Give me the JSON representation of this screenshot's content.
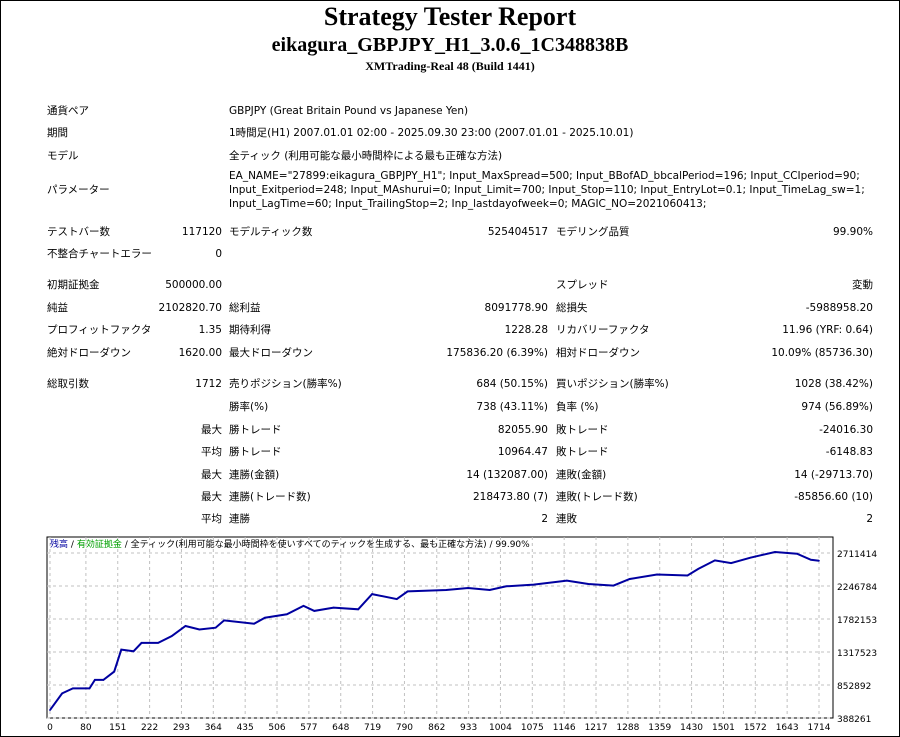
{
  "header": {
    "title": "Strategy Tester Report",
    "expert": "eikagura_GBPJPY_H1_3.0.6_1C348838B",
    "server": "XMTrading-Real 48 (Build 1441)"
  },
  "info": [
    {
      "label": "通貨ペア",
      "value": "GBPJPY (Great Britain Pound vs Japanese Yen)"
    },
    {
      "label": "期間",
      "value": "1時間足(H1) 2007.01.01 02:00 - 2025.09.30 23:00 (2007.01.01 - 2025.10.01)"
    },
    {
      "label": "モデル",
      "value": "全ティック (利用可能な最小時間枠による最も正確な方法)"
    }
  ],
  "parameters": {
    "label": "パラメーター",
    "lines": [
      "EA_NAME=\"27899:eikagura_GBPJPY_H1\"; Input_MaxSpread=500; Input_BBofAD_bbcalPeriod=196; Input_CCIperiod=90;",
      "Input_Exitperiod=248; Input_MAshurui=0; Input_Limit=700; Input_Stop=110; Input_EntryLot=0.1; Input_TimeLag_sw=1;",
      "Input_LagTime=60; Input_TrailingStop=2; Inp_lastdayofweek=0; MAGIC_NO=2021060413;"
    ]
  },
  "stats": [
    [
      "テストバー数",
      "117120",
      "モデルティック数",
      "525404517",
      "モデリング品質",
      "99.90%"
    ],
    [
      "不整合チャートエラー",
      "0",
      "",
      "",
      "",
      ""
    ],
    [
      "初期証拠金",
      "500000.00",
      "",
      "",
      "スプレッド",
      "変動"
    ],
    [
      "純益",
      "2102820.70",
      "総利益",
      "8091778.90",
      "総損失",
      "-5988958.20"
    ],
    [
      "プロフィットファクタ",
      "1.35",
      "期待利得",
      "1228.28",
      "リカバリーファクタ",
      "11.96 (YRF: 0.64)"
    ],
    [
      "絶対ドローダウン",
      "1620.00",
      "最大ドローダウン",
      "175836.20 (6.39%)",
      "相対ドローダウン",
      "10.09% (85736.30)"
    ],
    [
      "総取引数",
      "1712",
      "売りポジション(勝率%)",
      "684 (50.15%)",
      "買いポジション(勝率%)",
      "1028 (38.42%)"
    ],
    [
      "",
      "",
      "勝率(%)",
      "738 (43.11%)",
      "負率 (%)",
      "974 (56.89%)"
    ],
    [
      "",
      "最大",
      "勝トレード",
      "82055.90",
      "敗トレード",
      "-24016.30"
    ],
    [
      "",
      "平均",
      "勝トレード",
      "10964.47",
      "敗トレード",
      "-6148.83"
    ],
    [
      "",
      "最大",
      "連勝(金額)",
      "14 (132087.00)",
      "連敗(金額)",
      "14 (-29713.70)"
    ],
    [
      "",
      "最大",
      "連勝(トレード数)",
      "218473.80 (7)",
      "連敗(トレード数)",
      "-85856.60 (10)"
    ],
    [
      "",
      "平均",
      "連勝",
      "2",
      "連敗",
      "2"
    ]
  ],
  "chart_data": {
    "type": "line",
    "legend": {
      "balance": "残高",
      "equity": "有効証拠金",
      "separator": "/",
      "model": "全ティック(利用可能な最小時間枠を使いすべてのティックを生成する、最も正確な方法)",
      "quality": "99.90%"
    },
    "colors": {
      "balance": "#0000a0",
      "equity": "#00a000",
      "grid": "#c0c0c0"
    },
    "x_ticks": [
      0,
      80,
      151,
      222,
      293,
      364,
      435,
      506,
      577,
      648,
      719,
      790,
      862,
      933,
      1004,
      1075,
      1146,
      1217,
      1288,
      1359,
      1430,
      1501,
      1572,
      1643,
      1714
    ],
    "y_ticks": [
      388261,
      852892,
      1317523,
      1782153,
      2246784,
      2711414
    ],
    "xlim": [
      0,
      1714
    ],
    "ylim": [
      388261,
      2711414
    ],
    "grid": true,
    "series": [
      {
        "name": "残高",
        "x": [
          0,
          27,
          51,
          88,
          100,
          119,
          143,
          159,
          186,
          204,
          241,
          271,
          302,
          333,
          369,
          388,
          455,
          479,
          528,
          565,
          589,
          632,
          687,
          718,
          773,
          797,
          883,
          932,
          980,
          1017,
          1078,
          1152,
          1200,
          1256,
          1292,
          1353,
          1421,
          1445,
          1482,
          1518,
          1561,
          1616,
          1665,
          1696,
          1714
        ],
        "y": [
          500000,
          734000,
          805000,
          805000,
          924000,
          924000,
          1042000,
          1351000,
          1327000,
          1446000,
          1446000,
          1540000,
          1683000,
          1635000,
          1659000,
          1763000,
          1716000,
          1801000,
          1848000,
          1967000,
          1896000,
          1943000,
          1919000,
          2133000,
          2062000,
          2171000,
          2190000,
          2218000,
          2190000,
          2242000,
          2266000,
          2323000,
          2275000,
          2252000,
          2346000,
          2408000,
          2394000,
          2488000,
          2607000,
          2569000,
          2645000,
          2726000,
          2702000,
          2616000,
          2602821
        ]
      }
    ]
  }
}
